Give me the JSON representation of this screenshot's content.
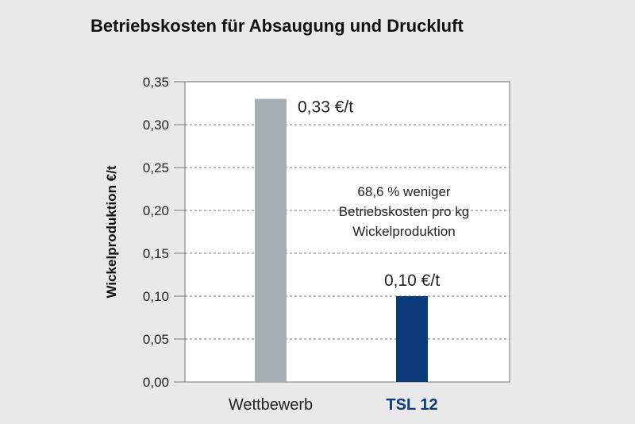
{
  "chart_data": {
    "type": "bar",
    "title": "Betriebskosten für Absaugung und Druckluft",
    "xlabel": "",
    "ylabel": "Wickelproduktion €/t",
    "ylim": [
      0,
      0.35
    ],
    "yticks": [
      "0,00",
      "0,05",
      "0,10",
      "0,15",
      "0,20",
      "0,25",
      "0,30",
      "0,35"
    ],
    "grid": true,
    "categories": [
      "Wettbewerb",
      "TSL 12"
    ],
    "values": [
      0.33,
      0.1
    ],
    "data_labels": [
      "0,33 €/t",
      "0,10 €/t"
    ],
    "bar_colors": [
      "#a5adb2",
      "#0b3a7a"
    ],
    "category_colors": [
      "#222222",
      "#0b3a7a"
    ],
    "annotation": [
      "68,6 % weniger",
      "Betriebskosten pro kg",
      "Wickelproduktion"
    ]
  }
}
